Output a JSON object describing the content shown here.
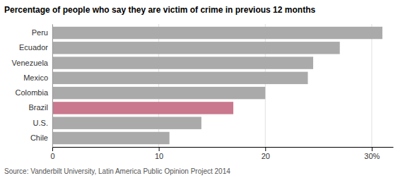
{
  "chart_data": {
    "type": "bar",
    "orientation": "horizontal",
    "title": "Percentage of people who say they are victim of crime in previous 12 months",
    "source": "Source: Vanderbilt University, Latin America Public Opinion Project 2014",
    "categories": [
      "Chile",
      "U.S.",
      "Brazil",
      "Colombia",
      "Mexico",
      "Venezuela",
      "Ecuador",
      "Peru"
    ],
    "values": [
      11,
      14,
      17,
      20,
      24,
      24.5,
      27,
      31
    ],
    "colors": [
      "#aaaaaa",
      "#aaaaaa",
      "#c9788e",
      "#aaaaaa",
      "#aaaaaa",
      "#aaaaaa",
      "#aaaaaa",
      "#aaaaaa"
    ],
    "xlim": [
      0,
      32
    ],
    "xticks": [
      0,
      10,
      20,
      {
        "value": 30,
        "label": "30%"
      }
    ],
    "grid": true
  }
}
